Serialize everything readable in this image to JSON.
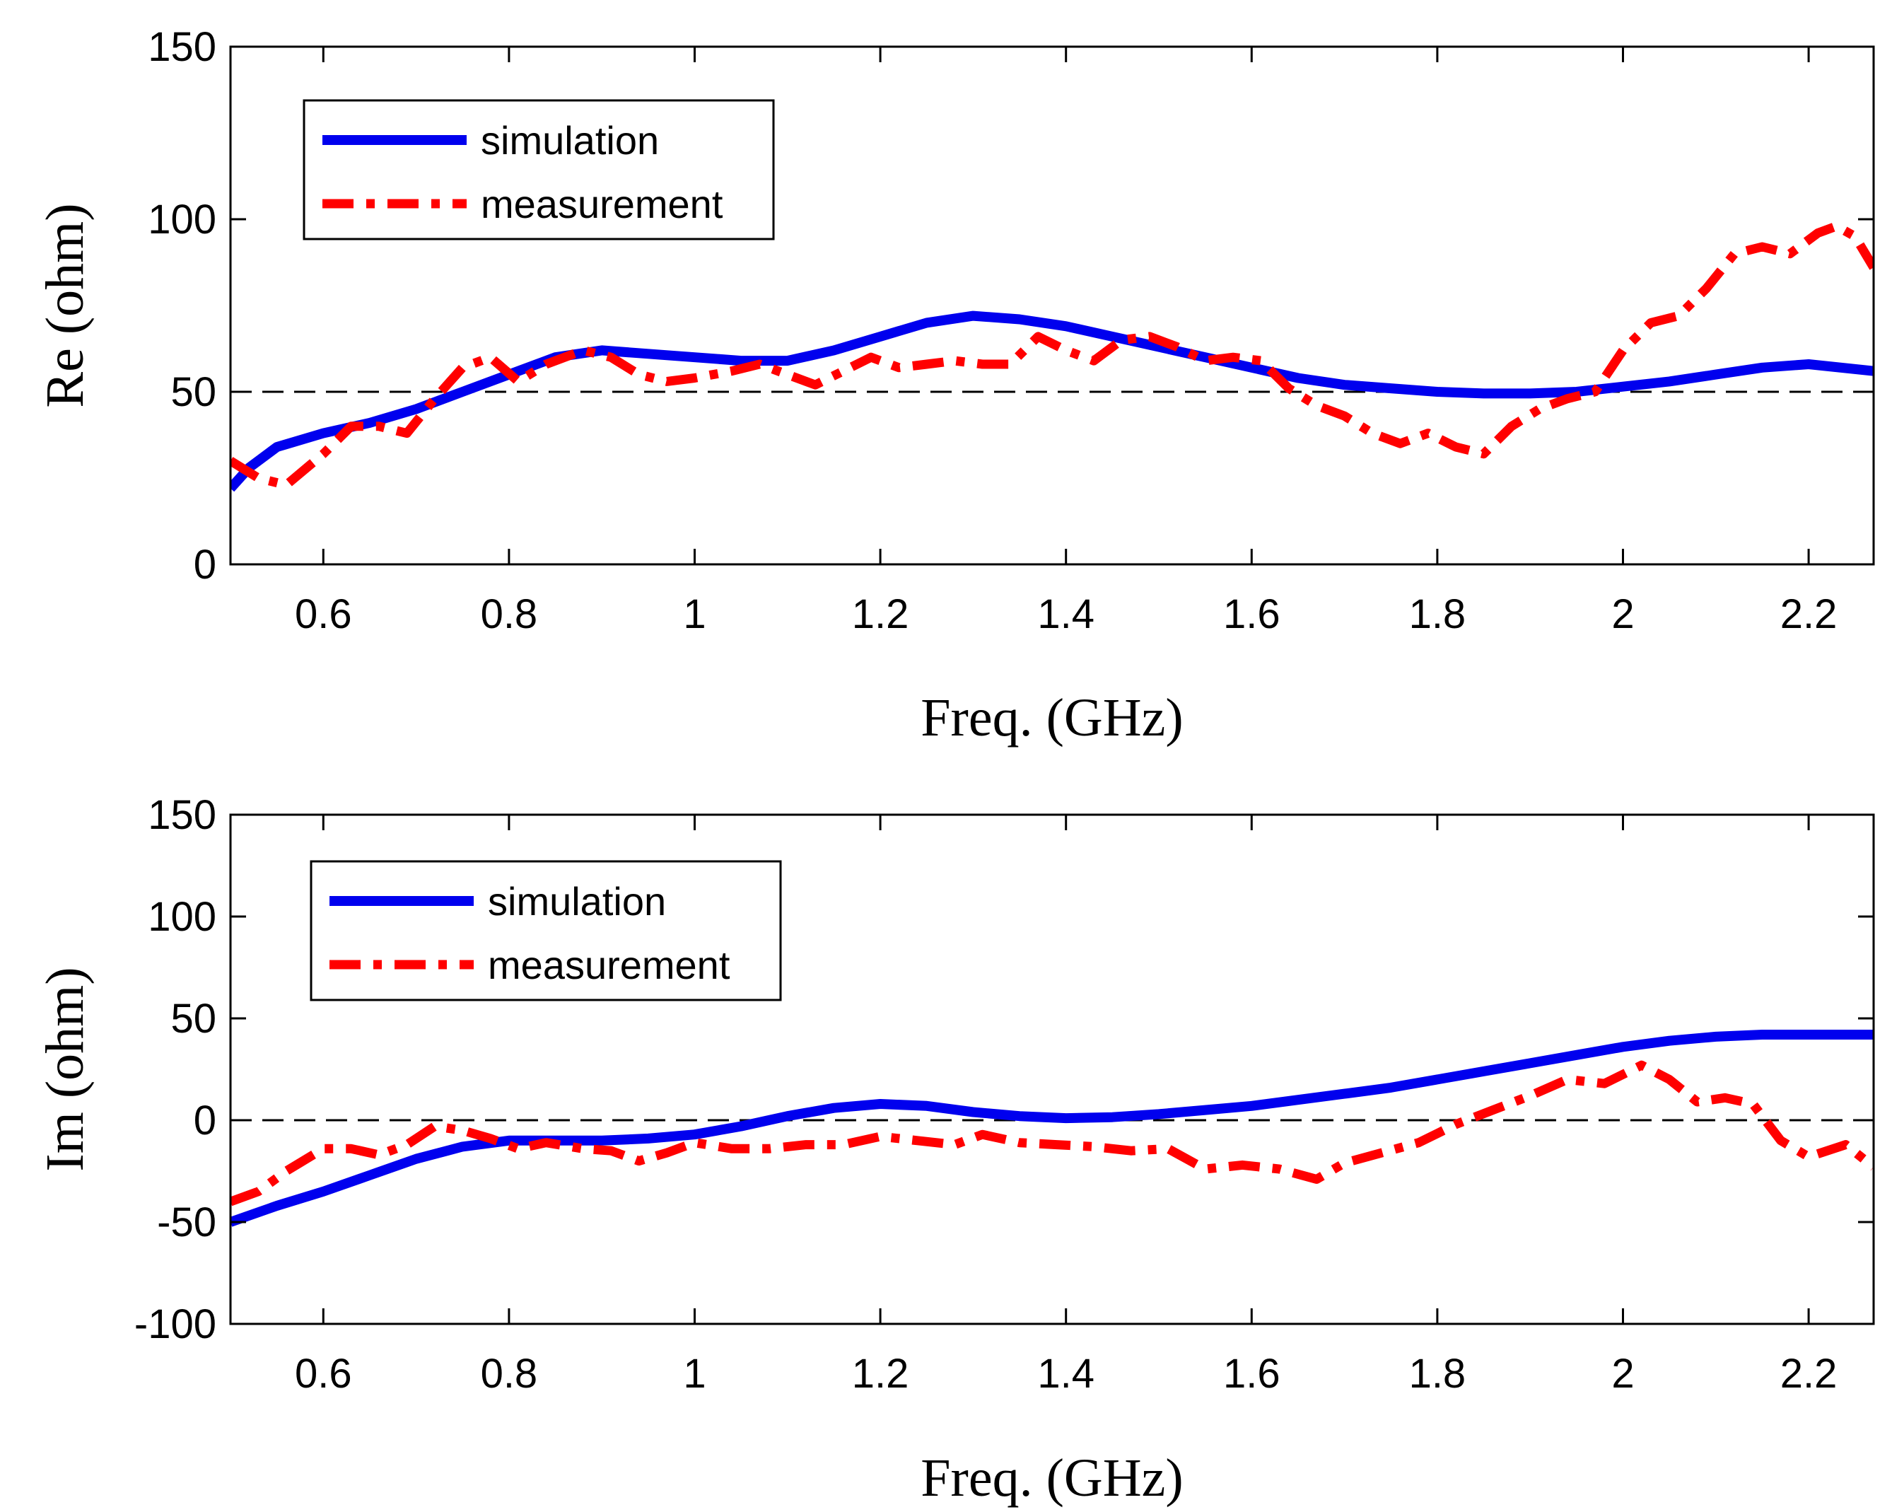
{
  "chart_data": [
    {
      "type": "line",
      "id": "re",
      "xlabel": "Freq. (GHz)",
      "ylabel": "Re (ohm)",
      "xlim": [
        0.5,
        2.27
      ],
      "ylim": [
        0,
        150
      ],
      "xticks": [
        0.6,
        0.8,
        1,
        1.2,
        1.4,
        1.6,
        1.8,
        2,
        2.2
      ],
      "xtick_labels": [
        "0.6",
        "0.8",
        "1",
        "1.2",
        "1.4",
        "1.6",
        "1.8",
        "2",
        "2.2"
      ],
      "yticks": [
        0,
        50,
        100,
        150
      ],
      "ytick_labels": [
        "0",
        "50",
        "100",
        "150"
      ],
      "reference_line": 50,
      "legend": {
        "location": "top-left",
        "entries": [
          "simulation",
          "measurement"
        ]
      },
      "series": [
        {
          "name": "simulation",
          "color": "#0000ee",
          "style": "solid",
          "x": [
            0.5,
            0.52,
            0.55,
            0.6,
            0.65,
            0.7,
            0.75,
            0.8,
            0.85,
            0.9,
            0.95,
            1.0,
            1.05,
            1.1,
            1.15,
            1.2,
            1.25,
            1.3,
            1.35,
            1.4,
            1.45,
            1.5,
            1.55,
            1.6,
            1.65,
            1.7,
            1.75,
            1.8,
            1.85,
            1.9,
            1.95,
            2.0,
            2.05,
            2.1,
            2.15,
            2.2,
            2.27
          ],
          "y": [
            22,
            28,
            34,
            38,
            41,
            45,
            50,
            55,
            60,
            62,
            61,
            60,
            59,
            59,
            62,
            66,
            70,
            72,
            71,
            69,
            66,
            63,
            60,
            57,
            54,
            52,
            51,
            50,
            49.5,
            49.5,
            50,
            51.5,
            53,
            55,
            57,
            58,
            56
          ]
        },
        {
          "name": "measurement",
          "color": "#ff0000",
          "style": "dash-dot",
          "x": [
            0.5,
            0.53,
            0.56,
            0.6,
            0.63,
            0.66,
            0.69,
            0.72,
            0.75,
            0.78,
            0.81,
            0.84,
            0.88,
            0.91,
            0.94,
            0.97,
            1.0,
            1.04,
            1.07,
            1.1,
            1.13,
            1.16,
            1.19,
            1.22,
            1.25,
            1.28,
            1.31,
            1.34,
            1.37,
            1.4,
            1.43,
            1.46,
            1.49,
            1.52,
            1.55,
            1.58,
            1.61,
            1.64,
            1.67,
            1.7,
            1.73,
            1.76,
            1.79,
            1.82,
            1.85,
            1.88,
            1.91,
            1.94,
            1.97,
            2.0,
            2.03,
            2.06,
            2.09,
            2.12,
            2.15,
            2.18,
            2.21,
            2.23,
            2.25,
            2.27
          ],
          "y": [
            30,
            25,
            23,
            32,
            40,
            40,
            38,
            48,
            57,
            60,
            53,
            58,
            62,
            60,
            55,
            53,
            54,
            56,
            58,
            55,
            52,
            56,
            60,
            57,
            58,
            59,
            58,
            58,
            66,
            62,
            59,
            65,
            66,
            63,
            59,
            60,
            59,
            51,
            46,
            43,
            38,
            35,
            38,
            34,
            32,
            40,
            45,
            48,
            50,
            62,
            70,
            72,
            80,
            90,
            92,
            90,
            96,
            98,
            95,
            86
          ]
        }
      ]
    },
    {
      "type": "line",
      "id": "im",
      "xlabel": "Freq. (GHz)",
      "ylabel": "Im (ohm)",
      "xlim": [
        0.5,
        2.27
      ],
      "ylim": [
        -100,
        150
      ],
      "xticks": [
        0.6,
        0.8,
        1,
        1.2,
        1.4,
        1.6,
        1.8,
        2,
        2.2
      ],
      "xtick_labels": [
        "0.6",
        "0.8",
        "1",
        "1.2",
        "1.4",
        "1.6",
        "1.8",
        "2",
        "2.2"
      ],
      "yticks": [
        -100,
        -50,
        0,
        50,
        100,
        150
      ],
      "ytick_labels": [
        "-100",
        "-50",
        "0",
        "50",
        "100",
        "150"
      ],
      "reference_line": 0,
      "legend": {
        "location": "top-left",
        "entries": [
          "simulation",
          "measurement"
        ]
      },
      "series": [
        {
          "name": "simulation",
          "color": "#0000ee",
          "style": "solid",
          "x": [
            0.5,
            0.55,
            0.6,
            0.65,
            0.7,
            0.75,
            0.8,
            0.85,
            0.9,
            0.95,
            1.0,
            1.05,
            1.1,
            1.15,
            1.2,
            1.25,
            1.3,
            1.35,
            1.4,
            1.45,
            1.5,
            1.55,
            1.6,
            1.65,
            1.7,
            1.75,
            1.8,
            1.85,
            1.9,
            1.95,
            2.0,
            2.05,
            2.1,
            2.15,
            2.2,
            2.27
          ],
          "y": [
            -50,
            -42,
            -35,
            -27,
            -19,
            -13,
            -10,
            -10,
            -10,
            -9,
            -7,
            -3,
            2,
            6,
            8,
            7,
            4,
            2,
            1,
            1.5,
            3,
            5,
            7,
            10,
            13,
            16,
            20,
            24,
            28,
            32,
            36,
            39,
            41,
            42,
            42,
            42
          ]
        },
        {
          "name": "measurement",
          "color": "#ff0000",
          "style": "dash-dot",
          "x": [
            0.5,
            0.53,
            0.56,
            0.6,
            0.63,
            0.66,
            0.69,
            0.72,
            0.75,
            0.78,
            0.81,
            0.84,
            0.88,
            0.91,
            0.94,
            0.97,
            1.0,
            1.04,
            1.08,
            1.12,
            1.16,
            1.2,
            1.24,
            1.28,
            1.31,
            1.35,
            1.39,
            1.43,
            1.47,
            1.51,
            1.55,
            1.59,
            1.63,
            1.67,
            1.7,
            1.74,
            1.78,
            1.82,
            1.86,
            1.9,
            1.94,
            1.98,
            2.02,
            2.05,
            2.08,
            2.11,
            2.14,
            2.17,
            2.2,
            2.24,
            2.27
          ],
          "y": [
            -40,
            -35,
            -25,
            -14,
            -14,
            -17,
            -12,
            -3,
            -5,
            -9,
            -14,
            -11,
            -14,
            -15,
            -20,
            -16,
            -11,
            -14,
            -14,
            -12,
            -12,
            -8,
            -10,
            -12,
            -7,
            -11,
            -12,
            -13,
            -15,
            -14,
            -24,
            -22,
            -24,
            -29,
            -21,
            -16,
            -11,
            -2,
            5,
            12,
            20,
            18,
            27,
            20,
            9,
            11,
            8,
            -10,
            -18,
            -12,
            -23
          ]
        }
      ]
    }
  ]
}
